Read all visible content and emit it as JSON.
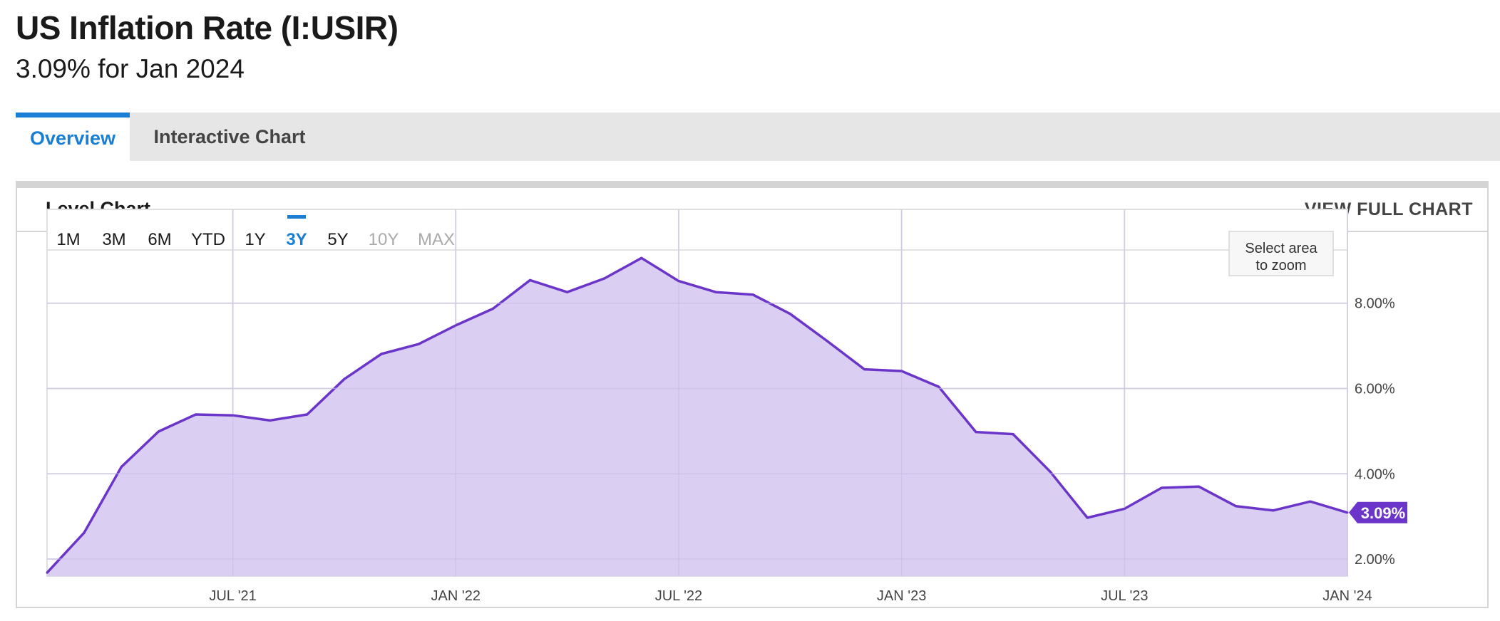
{
  "header": {
    "title": "US Inflation Rate (I:USIR)",
    "subtitle": "3.09% for Jan 2024"
  },
  "tabs": [
    {
      "label": "Overview",
      "active": true
    },
    {
      "label": "Interactive Chart",
      "active": false
    }
  ],
  "card": {
    "title": "Level Chart",
    "view_full_label": "VIEW FULL CHART"
  },
  "range_buttons": [
    {
      "label": "1M",
      "state": "normal"
    },
    {
      "label": "3M",
      "state": "normal"
    },
    {
      "label": "6M",
      "state": "normal"
    },
    {
      "label": "YTD",
      "state": "normal"
    },
    {
      "label": "1Y",
      "state": "normal"
    },
    {
      "label": "3Y",
      "state": "active"
    },
    {
      "label": "5Y",
      "state": "normal"
    },
    {
      "label": "10Y",
      "state": "disabled"
    },
    {
      "label": "MAX",
      "state": "disabled"
    }
  ],
  "zoom_hint": [
    "Select area",
    "to zoom"
  ],
  "colors": {
    "accent": "#1a7fd4",
    "series_line": "#6a35c8",
    "series_fill": "#d8ccf2",
    "disabled_text": "#aaaaaa"
  },
  "chart_data": {
    "type": "area",
    "x_tick_labels": [
      "JUL '21",
      "JAN '22",
      "JUL '22",
      "JAN '23",
      "JUL '23",
      "JAN '24"
    ],
    "y_tick_labels": [
      "2.00%",
      "4.00%",
      "6.00%",
      "8.00%"
    ],
    "y_ticks": [
      2,
      4,
      6,
      8
    ],
    "ylim": [
      1.6,
      10.2
    ],
    "xlim": [
      "2021-02",
      "2024-01"
    ],
    "grid": true,
    "last_value_label": "3.09%",
    "series": [
      {
        "values": [
          {
            "date": "2021-02",
            "value": 1.68
          },
          {
            "date": "2021-03",
            "value": 2.62
          },
          {
            "date": "2021-04",
            "value": 4.16
          },
          {
            "date": "2021-05",
            "value": 4.99
          },
          {
            "date": "2021-06",
            "value": 5.39
          },
          {
            "date": "2021-07",
            "value": 5.37
          },
          {
            "date": "2021-08",
            "value": 5.25
          },
          {
            "date": "2021-09",
            "value": 5.39
          },
          {
            "date": "2021-10",
            "value": 6.22
          },
          {
            "date": "2021-11",
            "value": 6.81
          },
          {
            "date": "2021-12",
            "value": 7.04
          },
          {
            "date": "2022-01",
            "value": 7.48
          },
          {
            "date": "2022-02",
            "value": 7.87
          },
          {
            "date": "2022-03",
            "value": 8.54
          },
          {
            "date": "2022-04",
            "value": 8.26
          },
          {
            "date": "2022-05",
            "value": 8.58
          },
          {
            "date": "2022-06",
            "value": 9.06
          },
          {
            "date": "2022-07",
            "value": 8.52
          },
          {
            "date": "2022-08",
            "value": 8.26
          },
          {
            "date": "2022-09",
            "value": 8.2
          },
          {
            "date": "2022-10",
            "value": 7.75
          },
          {
            "date": "2022-11",
            "value": 7.11
          },
          {
            "date": "2022-12",
            "value": 6.45
          },
          {
            "date": "2023-01",
            "value": 6.41
          },
          {
            "date": "2023-02",
            "value": 6.04
          },
          {
            "date": "2023-03",
            "value": 4.98
          },
          {
            "date": "2023-04",
            "value": 4.93
          },
          {
            "date": "2023-05",
            "value": 4.05
          },
          {
            "date": "2023-06",
            "value": 2.97
          },
          {
            "date": "2023-07",
            "value": 3.18
          },
          {
            "date": "2023-08",
            "value": 3.67
          },
          {
            "date": "2023-09",
            "value": 3.7
          },
          {
            "date": "2023-10",
            "value": 3.24
          },
          {
            "date": "2023-11",
            "value": 3.14
          },
          {
            "date": "2023-12",
            "value": 3.35
          },
          {
            "date": "2024-01",
            "value": 3.09
          }
        ]
      }
    ]
  }
}
